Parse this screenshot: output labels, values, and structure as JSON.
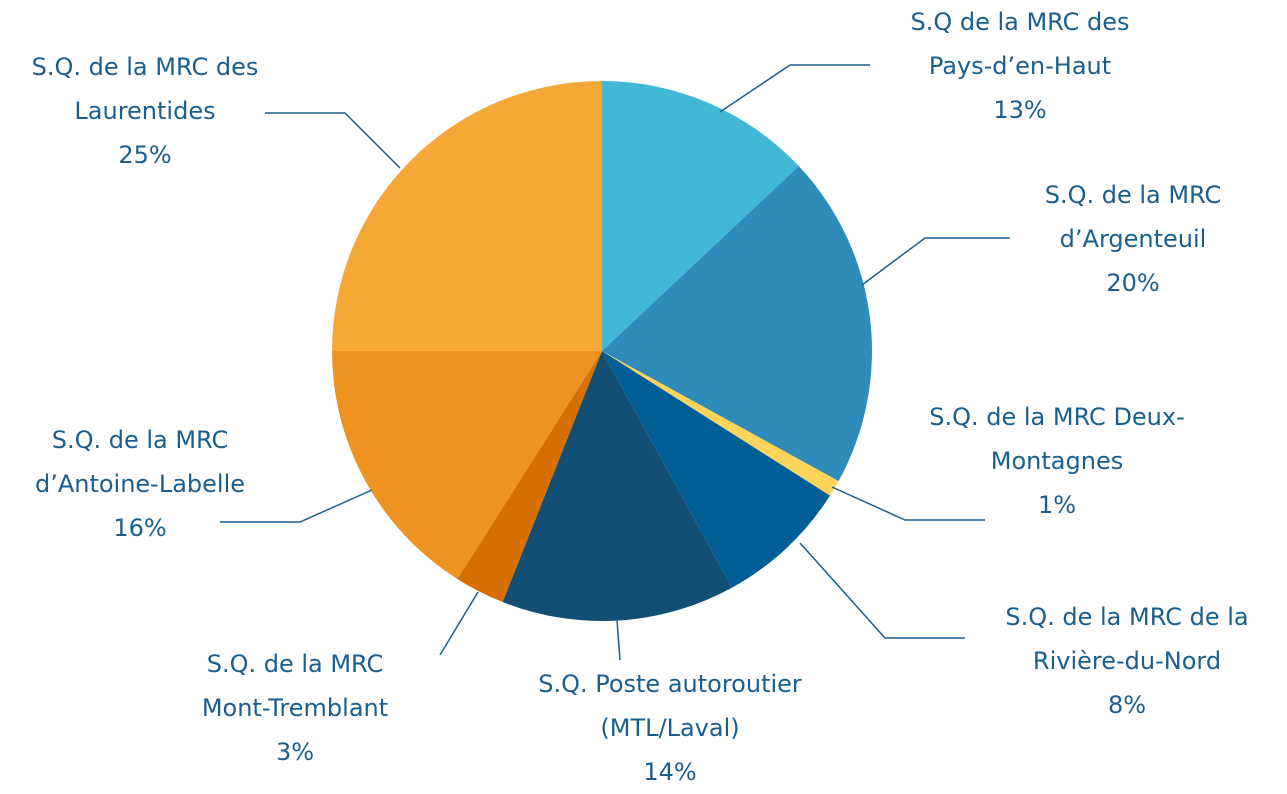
{
  "chart_data": {
    "type": "pie",
    "categories": [
      "S.Q de la MRC des Pays-d’en-Haut",
      "S.Q. de la MRC d’Argenteuil",
      "S.Q. de la MRC Deux-Montagnes",
      "S.Q. de la MRC de la Rivière-du-Nord",
      "S.Q. Poste autoroutier (MTL/Laval)",
      "S.Q. de la MRC Mont-Tremblant",
      "S.Q. de la MRC d’Antoine-Labelle",
      "S.Q. de la MRC des Laurentides"
    ],
    "values": [
      13,
      20,
      1,
      8,
      14,
      3,
      16,
      25
    ],
    "value_labels": [
      "13%",
      "20%",
      "1%",
      "8%",
      "14%",
      "3%",
      "16%",
      "25%"
    ],
    "colors": [
      "#42b8d6",
      "#2e8bba",
      "#fdd35a",
      "#005e96",
      "#134f74",
      "#d46f00",
      "#ee9222",
      "#f5a836"
    ]
  }
}
